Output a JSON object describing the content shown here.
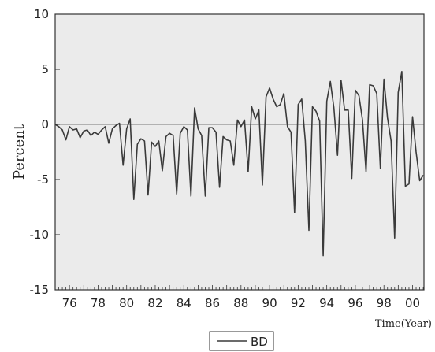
{
  "chart_data": {
    "type": "line",
    "xlabel": "Time(Year)",
    "ylabel": "Percent",
    "xlim": [
      1975.0,
      2000.8
    ],
    "ylim": [
      -15,
      10
    ],
    "yticks": [
      10,
      5,
      0,
      -5,
      -10,
      -15
    ],
    "xticks": [
      {
        "value": 1976,
        "label": "76"
      },
      {
        "value": 1978,
        "label": "78"
      },
      {
        "value": 1980,
        "label": "80"
      },
      {
        "value": 1982,
        "label": "82"
      },
      {
        "value": 1984,
        "label": "84"
      },
      {
        "value": 1986,
        "label": "86"
      },
      {
        "value": 1988,
        "label": "88"
      },
      {
        "value": 1990,
        "label": "90"
      },
      {
        "value": 1992,
        "label": "92"
      },
      {
        "value": 1994,
        "label": "94"
      },
      {
        "value": 1996,
        "label": "96"
      },
      {
        "value": 1998,
        "label": "98"
      },
      {
        "value": 2000,
        "label": "00"
      }
    ],
    "reference_line": 0,
    "legend": {
      "position": "bottom-center"
    },
    "series": [
      {
        "name": "BD",
        "color": "#3a3a3a",
        "x": [
          1975.0,
          1975.25,
          1975.5,
          1975.75,
          1976.0,
          1976.25,
          1976.5,
          1976.75,
          1977.0,
          1977.25,
          1977.5,
          1977.75,
          1978.0,
          1978.25,
          1978.5,
          1978.75,
          1979.0,
          1979.25,
          1979.5,
          1979.75,
          1980.0,
          1980.25,
          1980.5,
          1980.75,
          1981.0,
          1981.25,
          1981.5,
          1981.75,
          1982.0,
          1982.25,
          1982.5,
          1982.75,
          1983.0,
          1983.25,
          1983.5,
          1983.75,
          1984.0,
          1984.25,
          1984.5,
          1984.75,
          1985.0,
          1985.25,
          1985.5,
          1985.75,
          1986.0,
          1986.25,
          1986.5,
          1986.75,
          1987.0,
          1987.25,
          1987.5,
          1987.75,
          1988.0,
          1988.25,
          1988.5,
          1988.75,
          1989.0,
          1989.25,
          1989.5,
          1989.75,
          1990.0,
          1990.25,
          1990.5,
          1990.75,
          1991.0,
          1991.25,
          1991.5,
          1991.75,
          1992.0,
          1992.25,
          1992.5,
          1992.75,
          1993.0,
          1993.25,
          1993.5,
          1993.75,
          1994.0,
          1994.25,
          1994.5,
          1994.75,
          1995.0,
          1995.25,
          1995.5,
          1995.75,
          1996.0,
          1996.25,
          1996.5,
          1996.75,
          1997.0,
          1997.25,
          1997.5,
          1997.75,
          1998.0,
          1998.25,
          1998.5,
          1998.75,
          1999.0,
          1999.25,
          1999.5,
          1999.75,
          2000.0,
          2000.25,
          2000.5,
          2000.75
        ],
        "values": [
          0.0,
          -0.2,
          -0.5,
          -1.4,
          -0.2,
          -0.5,
          -0.4,
          -1.2,
          -0.6,
          -0.5,
          -1.0,
          -0.7,
          -0.9,
          -0.5,
          -0.2,
          -1.7,
          -0.4,
          -0.1,
          0.1,
          -3.7,
          -0.4,
          0.5,
          -6.8,
          -1.8,
          -1.3,
          -1.5,
          -6.4,
          -1.6,
          -2.0,
          -1.5,
          -4.2,
          -1.1,
          -0.8,
          -1.0,
          -6.3,
          -0.8,
          -0.2,
          -0.5,
          -6.5,
          1.5,
          -0.4,
          -1.0,
          -6.5,
          -0.3,
          -0.3,
          -0.7,
          -5.7,
          -1.1,
          -1.4,
          -1.5,
          -3.7,
          0.4,
          -0.2,
          0.4,
          -4.3,
          1.6,
          0.5,
          1.3,
          -5.5,
          2.5,
          3.3,
          2.3,
          1.6,
          1.8,
          2.8,
          -0.2,
          -0.7,
          -8.0,
          1.8,
          2.3,
          -1.5,
          -9.6,
          1.6,
          1.2,
          0.3,
          -11.9,
          2.1,
          3.9,
          1.5,
          -2.8,
          4.0,
          1.3,
          1.3,
          -4.9,
          3.1,
          2.6,
          0.4,
          -4.3,
          3.6,
          3.5,
          2.8,
          -4.0,
          4.1,
          0.6,
          -1.5,
          -10.3,
          2.9,
          4.8,
          -5.6,
          -5.4,
          0.7,
          -2.5,
          -5.1,
          -4.6
        ]
      }
    ]
  }
}
